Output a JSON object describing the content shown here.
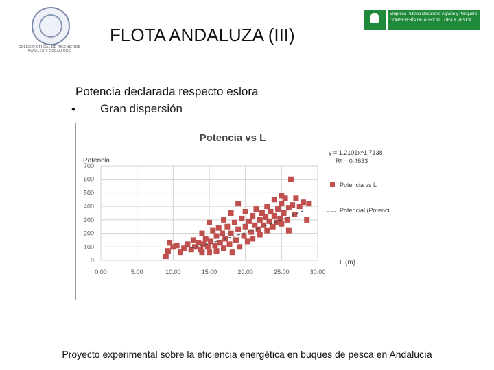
{
  "header": {
    "title": "FLOTA ANDALUZA (III)",
    "left_logo_text": "COLEGIO OFICIAL DE INGENIEROS NAVALES Y OCEÁNICOS",
    "right_logo_text_1": "Empresa Pública Desarrollo Agrario y Pesquero",
    "right_logo_text_2": "CONSEJERÍA DE AGRICULTURA Y PESCA"
  },
  "content": {
    "subtitle": "Potencia declarada respecto eslora",
    "bullet_symbol": "•",
    "bullet_text": "Gran dispersión"
  },
  "footer": {
    "text": "Proyecto experimental sobre la eficiencia energética en buques de pesca en Andalucía"
  },
  "chart_data": {
    "type": "scatter",
    "title": "Potencia vs L",
    "xlabel": "L (m)",
    "ylabel": "Potencia",
    "xlim": [
      0,
      30
    ],
    "ylim": [
      0,
      700
    ],
    "x_ticks": [
      "0.00",
      "5.00",
      "10.00",
      "15.00",
      "20.00",
      "25.00",
      "30.00"
    ],
    "y_ticks": [
      "0",
      "100",
      "200",
      "300",
      "400",
      "500",
      "600",
      "700"
    ],
    "grid": true,
    "legend_position": "right",
    "equation": "y = 1.2101x^1.7138",
    "r_squared": "R² = 0.4633",
    "colors": {
      "points": "#c0504d",
      "trend": "#444444",
      "grid": "#d0d0d0"
    },
    "trendline": {
      "name": "Potencial (Potencia vs L)",
      "a": 1.2101,
      "b": 1.7138,
      "x_range": [
        12.5,
        28
      ]
    },
    "series": [
      {
        "name": "Potencia vs L",
        "points": [
          [
            9.0,
            30
          ],
          [
            9.3,
            70
          ],
          [
            9.5,
            130
          ],
          [
            10.0,
            100
          ],
          [
            10.5,
            110
          ],
          [
            11.0,
            60
          ],
          [
            11.5,
            90
          ],
          [
            12.0,
            120
          ],
          [
            12.5,
            80
          ],
          [
            12.8,
            150
          ],
          [
            13.0,
            100
          ],
          [
            13.5,
            130
          ],
          [
            13.8,
            80
          ],
          [
            14.0,
            60
          ],
          [
            14.0,
            200
          ],
          [
            14.2,
            120
          ],
          [
            14.5,
            160
          ],
          [
            14.8,
            100
          ],
          [
            15.0,
            60
          ],
          [
            15.0,
            280
          ],
          [
            15.2,
            140
          ],
          [
            15.5,
            220
          ],
          [
            15.8,
            110
          ],
          [
            16.0,
            180
          ],
          [
            16.0,
            70
          ],
          [
            16.3,
            240
          ],
          [
            16.5,
            130
          ],
          [
            16.8,
            200
          ],
          [
            17.0,
            90
          ],
          [
            17.0,
            300
          ],
          [
            17.2,
            160
          ],
          [
            17.5,
            250
          ],
          [
            17.8,
            120
          ],
          [
            18.0,
            200
          ],
          [
            18.0,
            350
          ],
          [
            18.2,
            60
          ],
          [
            18.5,
            280
          ],
          [
            18.7,
            150
          ],
          [
            19.0,
            230
          ],
          [
            19.0,
            420
          ],
          [
            19.2,
            100
          ],
          [
            19.5,
            310
          ],
          [
            19.8,
            180
          ],
          [
            20.0,
            250
          ],
          [
            20.0,
            360
          ],
          [
            20.3,
            140
          ],
          [
            20.5,
            290
          ],
          [
            20.8,
            210
          ],
          [
            21.0,
            330
          ],
          [
            21.0,
            160
          ],
          [
            21.3,
            260
          ],
          [
            21.5,
            380
          ],
          [
            21.8,
            230
          ],
          [
            22.0,
            300
          ],
          [
            22.0,
            190
          ],
          [
            22.3,
            350
          ],
          [
            22.5,
            260
          ],
          [
            22.8,
            320
          ],
          [
            23.0,
            220
          ],
          [
            23.0,
            400
          ],
          [
            23.3,
            290
          ],
          [
            23.5,
            360
          ],
          [
            23.8,
            250
          ],
          [
            24.0,
            330
          ],
          [
            24.0,
            450
          ],
          [
            24.3,
            280
          ],
          [
            24.5,
            380
          ],
          [
            24.8,
            310
          ],
          [
            25.0,
            420
          ],
          [
            25.0,
            270
          ],
          [
            25.3,
            350
          ],
          [
            25.5,
            460
          ],
          [
            25.8,
            300
          ],
          [
            26.0,
            390
          ],
          [
            26.0,
            220
          ],
          [
            26.3,
            600
          ],
          [
            26.5,
            410
          ],
          [
            26.8,
            340
          ],
          [
            27.0,
            460
          ],
          [
            27.5,
            400
          ],
          [
            28.0,
            430
          ],
          [
            28.5,
            300
          ],
          [
            28.8,
            420
          ],
          [
            25.0,
            480
          ]
        ]
      }
    ]
  }
}
